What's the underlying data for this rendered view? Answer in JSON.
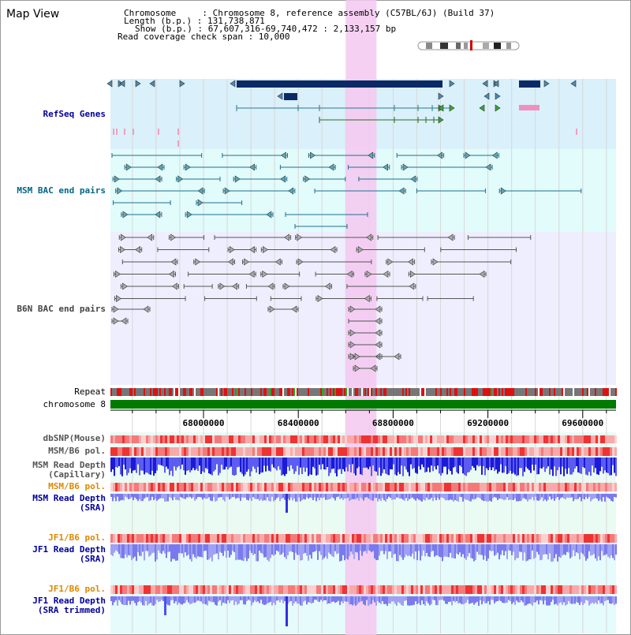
{
  "page": {
    "title": "Map View"
  },
  "info": {
    "chromosome_label": "Chromosome     : Chromosome 8, reference assembly (C57BL/6J) (Build 37)",
    "length_label": "Length (b.p.) : 131,738,871",
    "show_label": "Show (b.p.) : 67,607,316-69,740,472 : 2,133,157 bp",
    "coverage_label": "Read coverage check span : 10,000"
  },
  "tracks": {
    "refseq": "RefSeq Genes",
    "msm_bac": "MSM BAC end pairs",
    "b6n_bac": "B6N BAC end pairs",
    "repeat": "Repeat",
    "chromosome": "chromosome 8",
    "dbsnp": "dbSNP(Mouse)",
    "msm_b6_pol_1": "MSM/B6 pol.",
    "msm_depth_cap": "MSM Read Depth\n(Capillary)",
    "msm_b6_pol_2": "MSM/B6 pol.",
    "msm_depth_sra": "MSM Read Depth\n(SRA)",
    "jf1_b6_pol_1": "JF1/B6 pol.",
    "jf1_depth_sra": "JF1 Read Depth\n(SRA)",
    "jf1_b6_pol_2": "JF1/B6 pol.",
    "jf1_depth_trim": "JF1 Read Depth\n(SRA trimmed)"
  },
  "axis": {
    "unit": "bp",
    "range": [
      67607316,
      69740472
    ],
    "ticks": [
      "68000000",
      "68400000",
      "68800000",
      "69200000",
      "69600000"
    ],
    "tick_values": [
      68000000,
      68400000,
      68800000,
      69200000,
      69600000
    ]
  },
  "highlight": {
    "start": 68600000,
    "end": 68730000,
    "color": "#f5c8f0"
  },
  "colors": {
    "refseq_bg": "#daf0fa",
    "msm_bg": "#e2fbfb",
    "b6n_bg": "#eeeeff",
    "lower_bg": "#e8f8f0",
    "gene_dark": "#0a2a66",
    "gene_teal": "#2a8aa0",
    "gene_green": "#228822",
    "gene_pink": "#f090c0",
    "chrom_green": "#007a00",
    "pol_red": "#ee4444",
    "depth_blue": "#2222cc",
    "depth_light": "#8888ee",
    "label_blue": "#000099",
    "label_teal": "#006688",
    "label_orange": "#dd8800"
  }
}
